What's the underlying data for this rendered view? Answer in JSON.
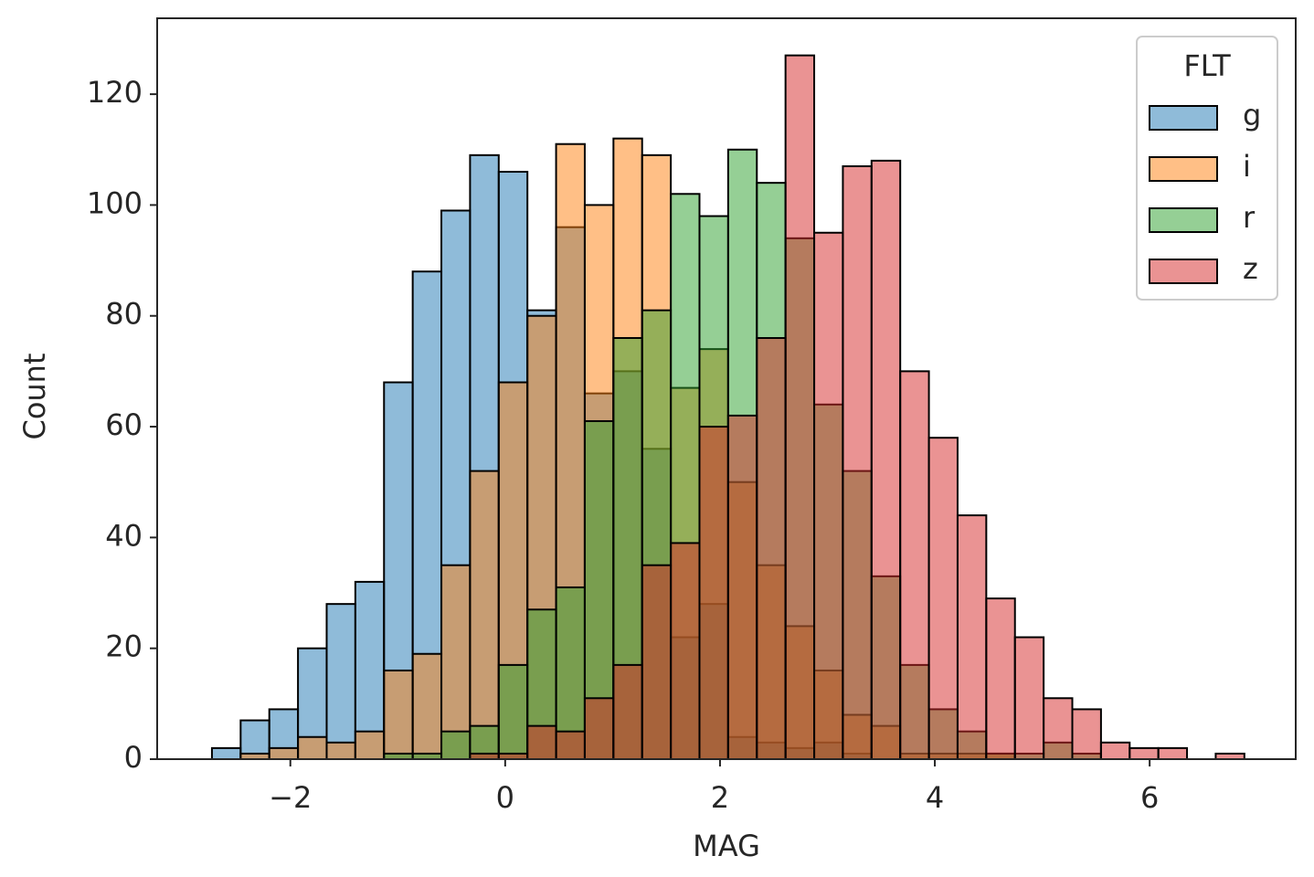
{
  "chart_data": {
    "type": "histogram",
    "xlabel": "MAG",
    "ylabel": "Count",
    "legend_title": "FLT",
    "legend_position": "upper right",
    "bins": [
      -2.73,
      -2.463,
      -2.196,
      -1.929,
      -1.662,
      -1.395,
      -1.128,
      -0.861,
      -0.594,
      -0.327,
      -0.06,
      0.207,
      0.474,
      0.741,
      1.008,
      1.275,
      1.542,
      1.809,
      2.076,
      2.343,
      2.61,
      2.877,
      3.144,
      3.411,
      3.678,
      3.945,
      4.212,
      4.479,
      4.746,
      5.013,
      5.28,
      5.547,
      5.814,
      6.081,
      6.348,
      6.615,
      6.882
    ],
    "series": [
      {
        "name": "g",
        "color": "#1f77b4",
        "values": [
          2,
          7,
          9,
          20,
          28,
          32,
          68,
          88,
          99,
          109,
          106,
          81,
          96,
          66,
          70,
          56,
          22,
          28,
          4,
          3,
          2,
          3,
          1,
          0,
          0,
          0,
          0,
          0,
          0,
          0,
          0,
          0,
          0,
          0,
          0,
          0
        ]
      },
      {
        "name": "i",
        "color": "#ff7f0e",
        "values": [
          0,
          1,
          2,
          4,
          3,
          5,
          16,
          19,
          35,
          52,
          68,
          80,
          111,
          100,
          112,
          109,
          67,
          74,
          50,
          35,
          24,
          16,
          8,
          6,
          1,
          1,
          1,
          1,
          0,
          0,
          0,
          0,
          0,
          0,
          0,
          0
        ]
      },
      {
        "name": "r",
        "color": "#2ca02c",
        "values": [
          0,
          0,
          0,
          0,
          0,
          0,
          1,
          1,
          5,
          6,
          17,
          27,
          31,
          61,
          76,
          81,
          102,
          98,
          110,
          104,
          94,
          64,
          52,
          33,
          17,
          9,
          5,
          1,
          1,
          3,
          1,
          0,
          0,
          0,
          0,
          0
        ]
      },
      {
        "name": "z",
        "color": "#d62728",
        "values": [
          0,
          0,
          0,
          0,
          0,
          0,
          0,
          0,
          0,
          1,
          1,
          6,
          5,
          11,
          17,
          35,
          39,
          60,
          62,
          76,
          127,
          95,
          107,
          108,
          70,
          58,
          44,
          29,
          22,
          11,
          9,
          3,
          2,
          2,
          0,
          1
        ]
      }
    ],
    "xlim": [
      -3.24,
      7.36
    ],
    "ylim": [
      0,
      133.7
    ],
    "xticks": [
      {
        "value": -2,
        "label": "−2"
      },
      0,
      2,
      4,
      6
    ],
    "yticks": [
      0,
      20,
      40,
      60,
      80,
      100,
      120
    ],
    "bar_opacity": 0.5
  }
}
